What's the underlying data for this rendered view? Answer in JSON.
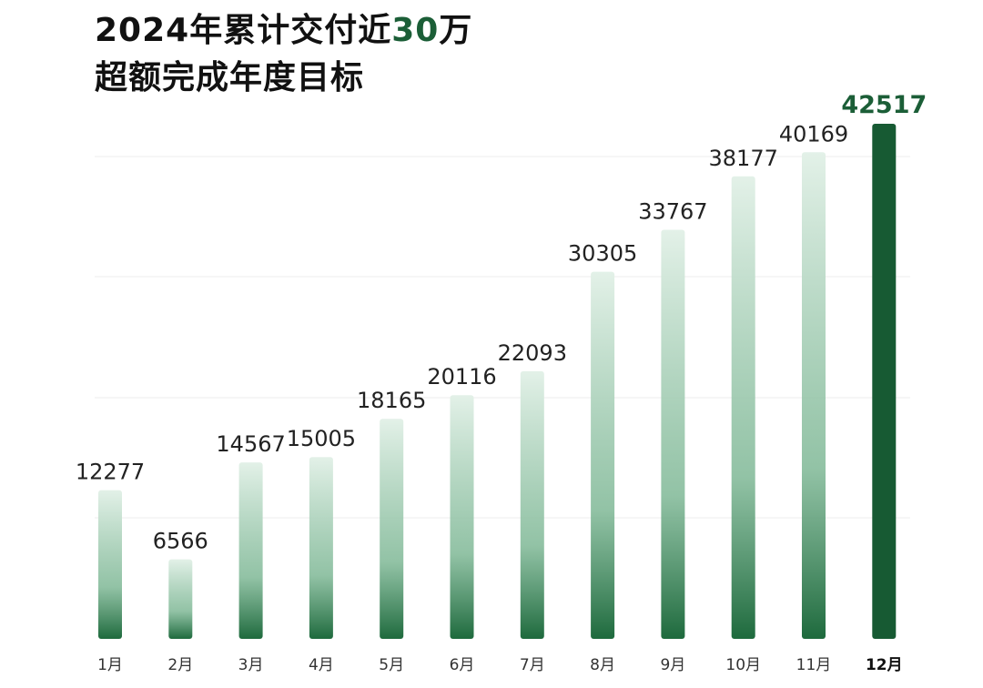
{
  "header": {
    "title_line1_prefix": "2024年累计交付近",
    "title_line1_highlight": "30",
    "title_line1_suffix": "万",
    "title_line2": "超额完成年度目标"
  },
  "colors": {
    "highlight": "#1b5e37",
    "bar_light": "#e3f1e8",
    "bar_dark": "#1e6a3d",
    "bar_last": "#175a33",
    "gridline": "#ececec"
  },
  "chart_data": {
    "type": "bar",
    "categories": [
      "1月",
      "2月",
      "3月",
      "4月",
      "5月",
      "6月",
      "7月",
      "8月",
      "9月",
      "10月",
      "11月",
      "12月"
    ],
    "values": [
      12277,
      6566,
      14567,
      15005,
      18165,
      20116,
      22093,
      30305,
      33767,
      38177,
      40169,
      42517
    ],
    "value_labels": [
      "12277",
      "6566",
      "14567",
      "15005",
      "18165",
      "20116",
      "22093",
      "30305",
      "33767",
      "38177",
      "40169",
      "42517"
    ],
    "ylim": [
      0,
      42517
    ],
    "grid": true,
    "highlighted_category": "12月"
  }
}
